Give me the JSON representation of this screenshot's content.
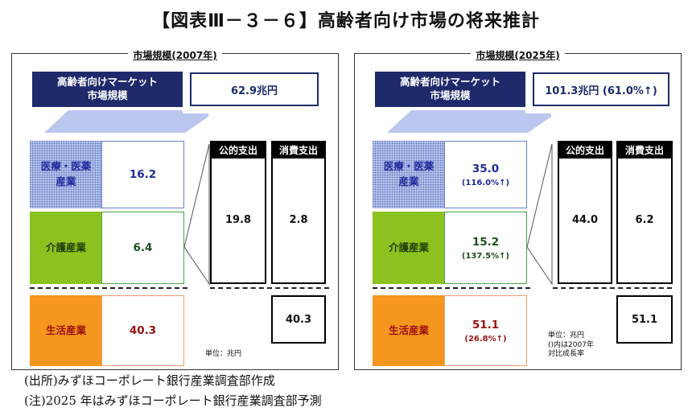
{
  "title": "【図表Ⅲ－３－６】高齢者向け市場の将来推計",
  "panels": [
    {
      "title": "市場規模(2007年)",
      "header_label_line1": "高齢者向けマーケット",
      "header_label_line2": "市場規模",
      "header_value": "62.9兆円",
      "medical_label_line1": "医療・医薬",
      "medical_label_line2": "産業",
      "medical_value": "16.2",
      "medical_change": "",
      "care_label": "介護産業",
      "care_value": "6.4",
      "care_change": "",
      "life_label": "生活産業",
      "life_value": "40.3",
      "life_change": "",
      "public_label": "公的支出",
      "public_value": "19.8",
      "private_label": "消費支出",
      "private_value": "2.8",
      "bottom_value": "40.3",
      "note_line1": "単位：兆円",
      "note_line2": "",
      "note_line3": ""
    },
    {
      "title": "市場規模(2025年)",
      "header_label_line1": "高齢者向けマーケット",
      "header_label_line2": "市場規模",
      "header_value": "101.3兆円 (61.0%↑)",
      "medical_label_line1": "医療・医薬",
      "medical_label_line2": "産業",
      "medical_value": "35.0",
      "medical_change": "(116.0%↑)",
      "care_label": "介護産業",
      "care_value": "15.2",
      "care_change": "(137.5%↑)",
      "life_label": "生活産業",
      "life_value": "51.1",
      "life_change": "(26.8%↑)",
      "public_label": "公的支出",
      "public_value": "44.0",
      "private_label": "消費支出",
      "private_value": "6.2",
      "bottom_value": "51.1",
      "note_line1": "単位：兆円",
      "note_line2": "()内は2007年",
      "note_line3": "対比成長率"
    }
  ],
  "footer": {
    "line1": "(出所)みずほコーポレート銀行産業調査部作成",
    "line2": "(注)2025 年はみずほコーポレート銀行産業調査部予測"
  }
}
